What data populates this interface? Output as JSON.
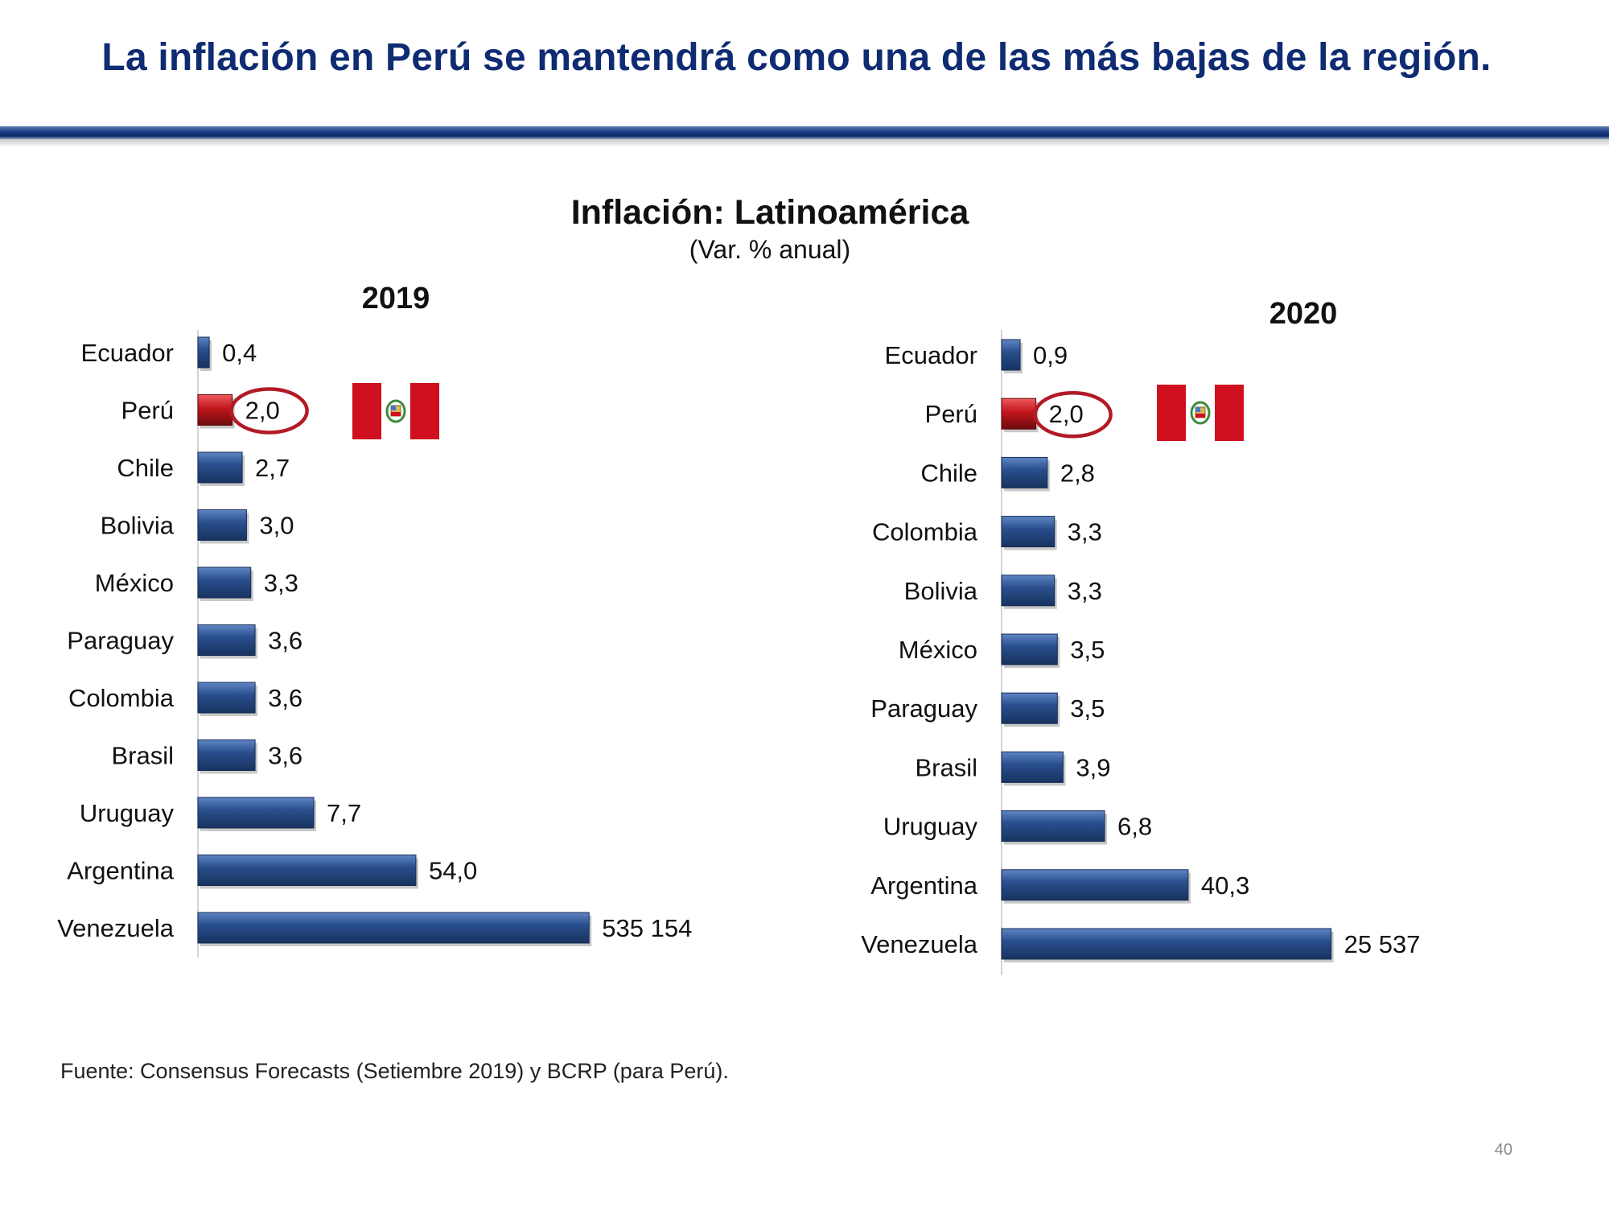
{
  "slide": {
    "title": "La inflación en Perú se mantendrá como una de las más bajas de la región.",
    "footnote": "Fuente: Consensus Forecasts (Setiembre 2019) y BCRP (para Perú).",
    "page_number": "40"
  },
  "colors": {
    "title": "#0f2c72",
    "bar": "#2a4f8e",
    "bar_highlight": "#c0151b",
    "circle": "#b21a26",
    "flag_red": "#d0101f"
  },
  "chart_data": [
    {
      "type": "bar",
      "orientation": "horizontal",
      "title": "Inflación: Latinoamérica",
      "subtitle": "(Var. % anual)",
      "panel_title": "2019",
      "categories": [
        "Ecuador",
        "Perú",
        "Chile",
        "Bolivia",
        "México",
        "Paraguay",
        "Colombia",
        "Brasil",
        "Uruguay",
        "Argentina",
        "Venezuela"
      ],
      "labels": [
        "0,4",
        "2,0",
        "2,7",
        "3,0",
        "3,3",
        "3,6",
        "3,6",
        "3,6",
        "7,7",
        "54,0",
        "535 154"
      ],
      "values": [
        0.4,
        2.0,
        2.7,
        3.0,
        3.3,
        3.6,
        3.6,
        3.6,
        7.7,
        54.0,
        535154
      ],
      "highlight": "Perú",
      "axis_note": "bar lengths are not drawn to a linear scale"
    },
    {
      "type": "bar",
      "orientation": "horizontal",
      "title": "Inflación: Latinoamérica",
      "subtitle": "(Var. % anual)",
      "panel_title": "2020",
      "categories": [
        "Ecuador",
        "Perú",
        "Chile",
        "Colombia",
        "Bolivia",
        "México",
        "Paraguay",
        "Brasil",
        "Uruguay",
        "Argentina",
        "Venezuela"
      ],
      "labels": [
        "0,9",
        "2,0",
        "2,8",
        "3,3",
        "3,3",
        "3,5",
        "3,5",
        "3,9",
        "6,8",
        "40,3",
        "25 537"
      ],
      "values": [
        0.9,
        2.0,
        2.8,
        3.3,
        3.3,
        3.5,
        3.5,
        3.9,
        6.8,
        40.3,
        25537
      ],
      "highlight": "Perú",
      "axis_note": "bar lengths are not drawn to a linear scale"
    }
  ]
}
